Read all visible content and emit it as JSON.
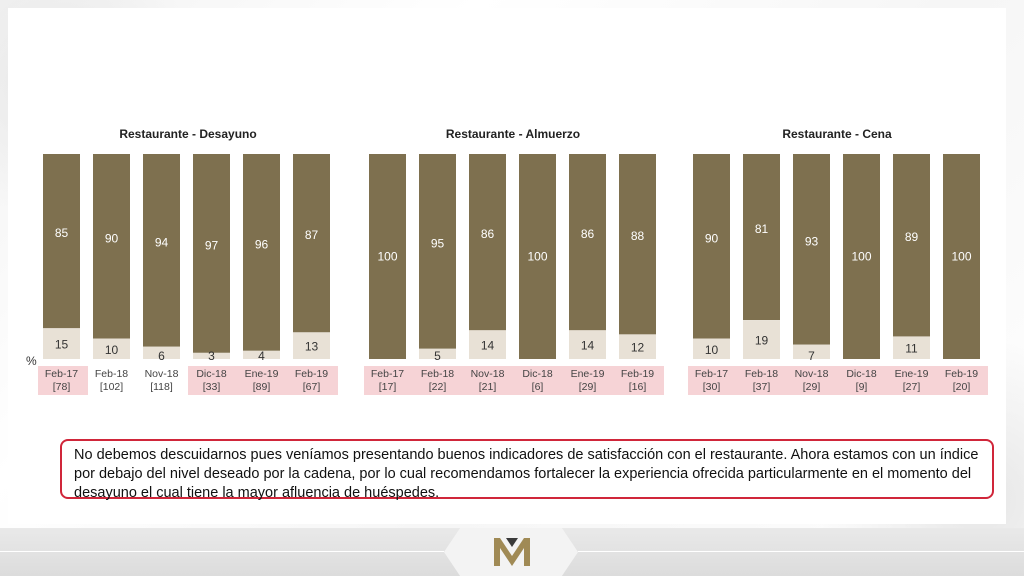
{
  "chart_data": [
    {
      "type": "bar",
      "title": "Restaurante - Desayuno",
      "categories": [
        "Feb-17",
        "Feb-18",
        "Nov-18",
        "Dic-18",
        "Ene-19",
        "Feb-19"
      ],
      "sample_sizes": [
        "[78]",
        "[102]",
        "[118]",
        "[33]",
        "[89]",
        "[67]"
      ],
      "series": [
        {
          "values": [
            85,
            90,
            94,
            97,
            96,
            87
          ],
          "color": "#7e704f"
        },
        {
          "values": [
            15,
            10,
            6,
            3,
            4,
            13
          ],
          "color": "#e8e1d6"
        }
      ],
      "highlighted_categories": [
        "Feb-17",
        "Dic-18",
        "Ene-19",
        "Feb-19"
      ],
      "ylim": [
        0,
        100
      ]
    },
    {
      "type": "bar",
      "title": "Restaurante - Almuerzo",
      "categories": [
        "Feb-17",
        "Feb-18",
        "Nov-18",
        "Dic-18",
        "Ene-19",
        "Feb-19"
      ],
      "sample_sizes": [
        "[17]",
        "[22]",
        "[21]",
        "[6]",
        "[29]",
        "[16]"
      ],
      "series": [
        {
          "values": [
            100,
            95,
            86,
            100,
            86,
            88
          ],
          "color": "#7e704f"
        },
        {
          "values": [
            0,
            5,
            14,
            0,
            14,
            12
          ],
          "color": "#e8e1d6"
        }
      ],
      "highlighted_categories": [
        "Feb-17",
        "Feb-18",
        "Nov-18",
        "Dic-18",
        "Ene-19",
        "Feb-19"
      ],
      "ylim": [
        0,
        100
      ]
    },
    {
      "type": "bar",
      "title": "Restaurante - Cena",
      "categories": [
        "Feb-17",
        "Feb-18",
        "Nov-18",
        "Dic-18",
        "Ene-19",
        "Feb-19"
      ],
      "sample_sizes": [
        "[30]",
        "[37]",
        "[29]",
        "[9]",
        "[27]",
        "[20]"
      ],
      "series": [
        {
          "values": [
            90,
            81,
            93,
            100,
            89,
            100
          ],
          "color": "#7e704f"
        },
        {
          "values": [
            10,
            19,
            7,
            0,
            11,
            0
          ],
          "color": "#e8e1d6"
        }
      ],
      "highlighted_categories": [
        "Feb-17",
        "Feb-18",
        "Nov-18",
        "Dic-18",
        "Ene-19",
        "Feb-19"
      ],
      "ylim": [
        0,
        100
      ]
    }
  ],
  "axis_unit": "%",
  "note_text": "No debemos descuidarnos pues veníamos presentando buenos indicadores de satisfacción con el restaurante. Ahora estamos con un índice por debajo del nivel deseado por la cadena, por lo cual recomendamos fortalecer la experiencia ofrecida particularmente en el momento del desayuno el cual tiene la mayor afluencia de huéspedes.",
  "colors": {
    "bar_dark": "#7e704f",
    "bar_light": "#e8e1d6",
    "highlight": "#f6d3d6",
    "note_border": "#d0263a"
  },
  "logo": {
    "icon": "hotel-logo-icon"
  }
}
